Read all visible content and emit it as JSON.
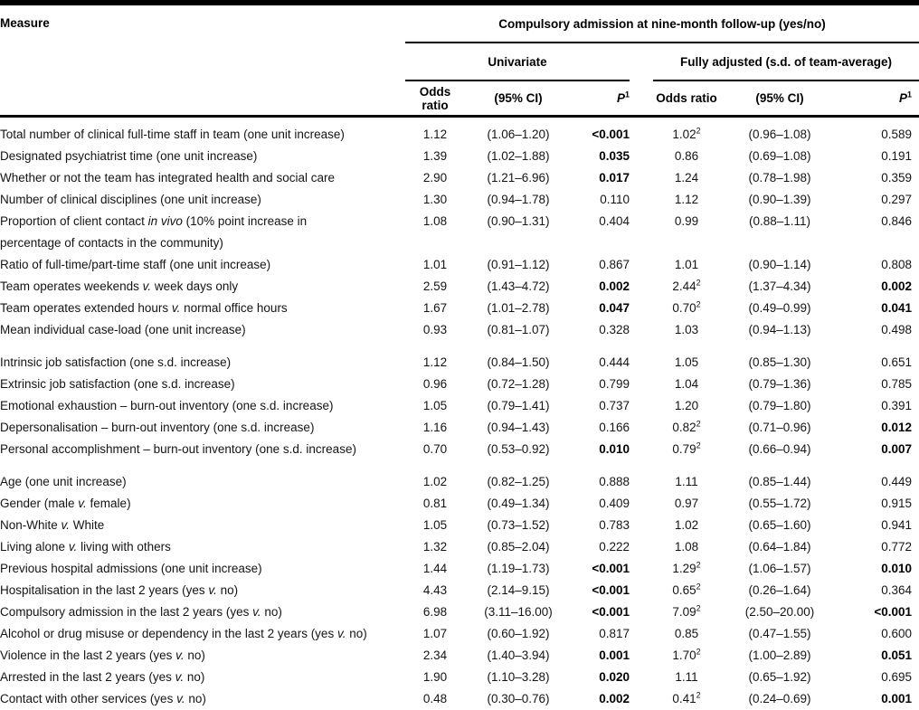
{
  "header": {
    "measure_label": "Measure",
    "span_label": "Compulsory admission at nine-month follow-up (yes/no)",
    "group_univariate": "Univariate",
    "group_adjusted": "Fully adjusted (s.d. of team-average)",
    "col_odds_ratio": "Odds ratio",
    "col_ci": "(95% CI)",
    "col_p": "*P*^1"
  },
  "table": {
    "rows": [
      {
        "measure": "Total number of clinical full-time staff in team (one unit increase)",
        "or1": "1.12",
        "ci1": "(1.06–1.20)",
        "p1": "<0.001",
        "p1b": true,
        "or2": "1.02^2",
        "ci2": "(0.96–1.08)",
        "p2": "0.589",
        "p2b": false
      },
      {
        "measure": "Designated psychiatrist time (one unit increase)",
        "or1": "1.39",
        "ci1": "(1.02–1.88)",
        "p1": "0.035",
        "p1b": true,
        "or2": "0.86",
        "ci2": "(0.69–1.08)",
        "p2": "0.191",
        "p2b": false
      },
      {
        "measure": "Whether or not the team has integrated health and social care",
        "or1": "2.90",
        "ci1": "(1.21–6.96)",
        "p1": "0.017",
        "p1b": true,
        "or2": "1.24",
        "ci2": "(0.78–1.98)",
        "p2": "0.359",
        "p2b": false
      },
      {
        "measure": "Number of clinical disciplines (one unit increase)",
        "or1": "1.30",
        "ci1": "(0.94–1.78)",
        "p1": "0.110",
        "p1b": false,
        "or2": "1.12",
        "ci2": "(0.90–1.39)",
        "p2": "0.297",
        "p2b": false
      },
      {
        "measure": "Proportion of client contact *in vivo* (10% point increase in",
        "measure2": "percentage of contacts in the community)",
        "or1": "1.08",
        "ci1": "(0.90–1.31)",
        "p1": "0.404",
        "p1b": false,
        "or2": "0.99",
        "ci2": "(0.88–1.11)",
        "p2": "0.846",
        "p2b": false
      },
      {
        "measure": "Ratio of full-time/part-time staff (one unit increase)",
        "or1": "1.01",
        "ci1": "(0.91–1.12)",
        "p1": "0.867",
        "p1b": false,
        "or2": "1.01",
        "ci2": "(0.90–1.14)",
        "p2": "0.808",
        "p2b": false
      },
      {
        "measure": "Team operates weekends *v.* week days only",
        "or1": "2.59",
        "ci1": "(1.43–4.72)",
        "p1": "0.002",
        "p1b": true,
        "or2": "2.44^2",
        "ci2": "(1.37–4.34)",
        "p2": "0.002",
        "p2b": true
      },
      {
        "measure": "Team operates extended hours *v.* normal office hours",
        "or1": "1.67",
        "ci1": "(1.01–2.78)",
        "p1": "0.047",
        "p1b": true,
        "or2": "0.70^2",
        "ci2": "(0.49–0.99)",
        "p2": "0.041",
        "p2b": true
      },
      {
        "measure": "Mean individual case-load (one unit increase)",
        "or1": "0.93",
        "ci1": "(0.81–1.07)",
        "p1": "0.328",
        "p1b": false,
        "or2": "1.03",
        "ci2": "(0.94–1.13)",
        "p2": "0.498",
        "p2b": false
      },
      {
        "measure": "Intrinsic job satisfaction (one s.d. increase)",
        "group_start": true,
        "or1": "1.12",
        "ci1": "(0.84–1.50)",
        "p1": "0.444",
        "p1b": false,
        "or2": "1.05",
        "ci2": "(0.85–1.30)",
        "p2": "0.651",
        "p2b": false
      },
      {
        "measure": "Extrinsic job satisfaction (one s.d. increase)",
        "or1": "0.96",
        "ci1": "(0.72–1.28)",
        "p1": "0.799",
        "p1b": false,
        "or2": "1.04",
        "ci2": "(0.79–1.36)",
        "p2": "0.785",
        "p2b": false
      },
      {
        "measure": "Emotional exhaustion – burn-out inventory (one s.d. increase)",
        "or1": "1.05",
        "ci1": "(0.79–1.41)",
        "p1": "0.737",
        "p1b": false,
        "or2": "1.20",
        "ci2": "(0.79–1.80)",
        "p2": "0.391",
        "p2b": false
      },
      {
        "measure": "Depersonalisation – burn-out inventory (one s.d. increase)",
        "or1": "1.16",
        "ci1": "(0.94–1.43)",
        "p1": "0.166",
        "p1b": false,
        "or2": "0.82^2",
        "ci2": "(0.71–0.96)",
        "p2": "0.012",
        "p2b": true
      },
      {
        "measure": "Personal accomplishment – burn-out inventory (one s.d. increase)",
        "or1": "0.70",
        "ci1": "(0.53–0.92)",
        "p1": "0.010",
        "p1b": true,
        "or2": "0.79^2",
        "ci2": "(0.66–0.94)",
        "p2": "0.007",
        "p2b": true
      },
      {
        "measure": "Age (one unit increase)",
        "group_start": true,
        "or1": "1.02",
        "ci1": "(0.82–1.25)",
        "p1": "0.888",
        "p1b": false,
        "or2": "1.11",
        "ci2": "(0.85–1.44)",
        "p2": "0.449",
        "p2b": false
      },
      {
        "measure": "Gender (male *v.* female)",
        "or1": "0.81",
        "ci1": "(0.49–1.34)",
        "p1": "0.409",
        "p1b": false,
        "or2": "0.97",
        "ci2": "(0.55–1.72)",
        "p2": "0.915",
        "p2b": false
      },
      {
        "measure": "Non-White *v.* White",
        "or1": "1.05",
        "ci1": "(0.73–1.52)",
        "p1": "0.783",
        "p1b": false,
        "or2": "1.02",
        "ci2": "(0.65–1.60)",
        "p2": "0.941",
        "p2b": false
      },
      {
        "measure": "Living alone *v.* living with others",
        "or1": "1.32",
        "ci1": "(0.85–2.04)",
        "p1": "0.222",
        "p1b": false,
        "or2": "1.08",
        "ci2": "(0.64–1.84)",
        "p2": "0.772",
        "p2b": false
      },
      {
        "measure": "Previous hospital admissions (one unit increase)",
        "or1": "1.44",
        "ci1": "(1.19–1.73)",
        "p1": "<0.001",
        "p1b": true,
        "or2": "1.29^2",
        "ci2": "(1.06–1.57)",
        "p2": "0.010",
        "p2b": true
      },
      {
        "measure": "Hospitalisation in the last 2 years (yes *v.* no)",
        "or1": "4.43",
        "ci1": "(2.14–9.15)",
        "p1": "<0.001",
        "p1b": true,
        "or2": "0.65^2",
        "ci2": "(0.26–1.64)",
        "p2": "0.364",
        "p2b": false
      },
      {
        "measure": "Compulsory admission in the last 2 years (yes *v.* no)",
        "or1": "6.98",
        "ci1": "(3.11–16.00)",
        "p1": "<0.001",
        "p1b": true,
        "or2": "7.09^2",
        "ci2": "(2.50–20.00)",
        "p2": "<0.001",
        "p2b": true
      },
      {
        "measure": "Alcohol or drug misuse or dependency in the last 2 years (yes *v.* no)",
        "or1": "1.07",
        "ci1": "(0.60–1.92)",
        "p1": "0.817",
        "p1b": false,
        "or2": "0.85",
        "ci2": "(0.47–1.55)",
        "p2": "0.600",
        "p2b": false
      },
      {
        "measure": "Violence in the last 2 years (yes *v.* no)",
        "or1": "2.34",
        "ci1": "(1.40–3.94)",
        "p1": "0.001",
        "p1b": true,
        "or2": "1.70^2",
        "ci2": "(1.00–2.89)",
        "p2": "0.051",
        "p2b": true
      },
      {
        "measure": "Arrested in the last 2 years (yes *v.* no)",
        "or1": "1.90",
        "ci1": "(1.10–3.28)",
        "p1": "0.020",
        "p1b": true,
        "or2": "1.11",
        "ci2": "(0.65–1.92)",
        "p2": "0.695",
        "p2b": false
      },
      {
        "measure": "Contact with other services (yes *v.* no)",
        "or1": "0.48",
        "ci1": "(0.30–0.76)",
        "p1": "0.002",
        "p1b": true,
        "or2": "0.41^2",
        "ci2": "(0.24–0.69)",
        "p2": "0.001",
        "p2b": true
      }
    ]
  }
}
